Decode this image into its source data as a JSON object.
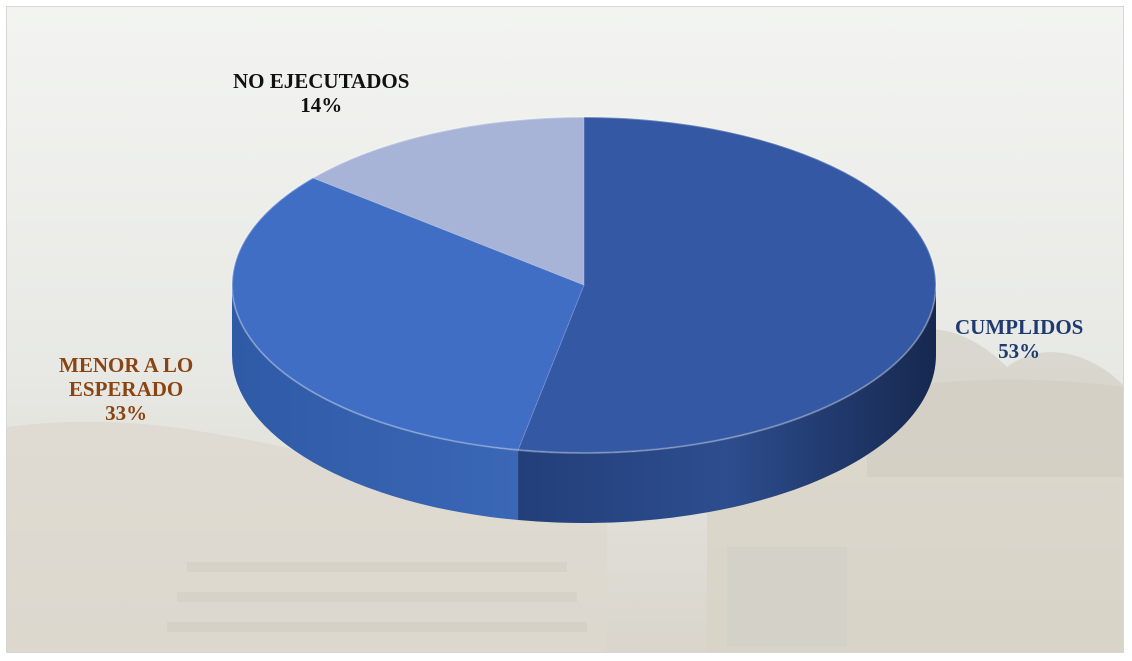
{
  "chart_data": {
    "type": "pie",
    "title": "",
    "slices": [
      {
        "name": "CUMPLIDOS",
        "value": 53,
        "label": "53%",
        "color": "#3458a3",
        "text_color": "#1f3a6e"
      },
      {
        "name": "MENOR A LO ESPERADO",
        "value": 33,
        "label": "33%",
        "color": "#3f6ec4",
        "text_color": "#8a4412"
      },
      {
        "name": "NO EJECUTADOS",
        "value": 14,
        "label": "14%",
        "color": "#a7b4d8",
        "text_color": "#111111"
      }
    ],
    "label_lines": {
      "menor": [
        "MENOR A LO",
        "ESPERADO"
      ]
    },
    "legend": "none",
    "style": "3d"
  }
}
